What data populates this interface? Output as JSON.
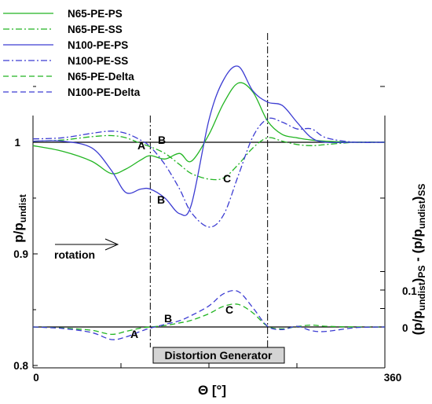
{
  "chart_data": {
    "type": "line",
    "xlabel": "Θ [°]",
    "ylabel_left": "p/p_undist",
    "ylabel_right": "(p/p_undist)_PS - (p/p_undist)_SS",
    "x_ticks": [
      "0",
      "360"
    ],
    "xlim": [
      0,
      360
    ],
    "y_left": {
      "ticks": [
        "1",
        "0.9",
        "0.8"
      ],
      "tick_values": [
        1,
        0.9,
        0.8
      ],
      "ylim": [
        0.8,
        1.1
      ]
    },
    "y_right": {
      "ticks": [
        "0.1",
        "0"
      ],
      "tick_values": [
        0.1,
        0
      ]
    },
    "legend": {
      "position": "top-left"
    },
    "annotations": {
      "rotation": "rotation",
      "generator": "Distortion Generator",
      "A": "A",
      "B": "B",
      "C": "C"
    },
    "vlines_x": [
      120,
      240
    ],
    "series": [
      {
        "name": "N65-PE-PS",
        "color": "#22b522",
        "style": "solid",
        "axis": "left",
        "x": [
          0,
          30,
          60,
          80,
          95,
          110,
          120,
          135,
          150,
          162,
          180,
          195,
          210,
          225,
          240,
          255,
          270,
          285,
          300,
          330,
          360
        ],
        "y": [
          0.997,
          0.992,
          0.983,
          0.972,
          0.976,
          0.984,
          0.988,
          0.985,
          0.99,
          0.983,
          1.007,
          1.035,
          1.053,
          1.045,
          1.019,
          1.007,
          1.004,
          1.002,
          1.001,
          1.0,
          1.0
        ]
      },
      {
        "name": "N65-PE-SS",
        "color": "#22b522",
        "style": "dashdot",
        "axis": "left",
        "x": [
          0,
          30,
          60,
          80,
          95,
          110,
          120,
          135,
          150,
          162,
          180,
          195,
          210,
          225,
          240,
          255,
          270,
          285,
          300,
          330,
          360
        ],
        "y": [
          1.001,
          1.002,
          1.005,
          1.006,
          1.004,
          0.999,
          0.996,
          0.99,
          0.98,
          0.972,
          0.967,
          0.968,
          0.98,
          0.995,
          1.004,
          1.001,
          0.998,
          0.997,
          0.998,
          1.0,
          1.0
        ]
      },
      {
        "name": "N100-PE-PS",
        "color": "#3c3cd2",
        "style": "solid",
        "axis": "left",
        "x": [
          0,
          30,
          60,
          80,
          95,
          110,
          120,
          135,
          150,
          162,
          180,
          195,
          210,
          225,
          240,
          255,
          270,
          285,
          300,
          330,
          360
        ],
        "y": [
          1.001,
          1.001,
          0.995,
          0.975,
          0.955,
          0.958,
          0.958,
          0.95,
          0.936,
          0.944,
          1.02,
          1.056,
          1.068,
          1.046,
          1.036,
          1.033,
          1.018,
          1.004,
          1.0,
          1.0,
          1.0
        ]
      },
      {
        "name": "N100-PE-SS",
        "color": "#3c3cd2",
        "style": "dashdot",
        "axis": "left",
        "x": [
          0,
          30,
          60,
          80,
          95,
          110,
          120,
          135,
          150,
          162,
          180,
          195,
          210,
          225,
          240,
          255,
          270,
          285,
          300,
          330,
          360
        ],
        "y": [
          1.003,
          1.004,
          1.008,
          1.01,
          1.008,
          1.002,
          0.996,
          0.98,
          0.958,
          0.937,
          0.924,
          0.935,
          0.97,
          1.005,
          1.021,
          1.018,
          1.012,
          1.012,
          1.004,
          1.0,
          1.0
        ]
      },
      {
        "name": "N65-PE-Delta",
        "color": "#22b522",
        "style": "dashed",
        "axis": "right",
        "x": [
          0,
          30,
          60,
          80,
          95,
          110,
          120,
          135,
          150,
          162,
          180,
          195,
          210,
          225,
          240,
          255,
          270,
          285,
          300,
          330,
          360
        ],
        "y": [
          0.0,
          -0.003,
          -0.009,
          -0.02,
          -0.012,
          -0.003,
          0.0,
          0.004,
          0.011,
          0.018,
          0.036,
          0.056,
          0.061,
          0.038,
          0.002,
          -0.005,
          0.001,
          0.005,
          0.002,
          0.0,
          0.0
        ]
      },
      {
        "name": "N100-PE-Delta",
        "color": "#3c3cd2",
        "style": "dashed",
        "axis": "right",
        "x": [
          0,
          30,
          60,
          80,
          95,
          110,
          120,
          135,
          150,
          162,
          180,
          195,
          210,
          225,
          240,
          255,
          270,
          285,
          300,
          330,
          360
        ],
        "y": [
          0.0,
          -0.004,
          -0.015,
          -0.034,
          -0.027,
          -0.012,
          -0.003,
          0.007,
          0.017,
          0.031,
          0.057,
          0.09,
          0.096,
          0.052,
          0.002,
          -0.007,
          0.002,
          -0.01,
          -0.012,
          -0.002,
          0.0
        ]
      }
    ]
  }
}
